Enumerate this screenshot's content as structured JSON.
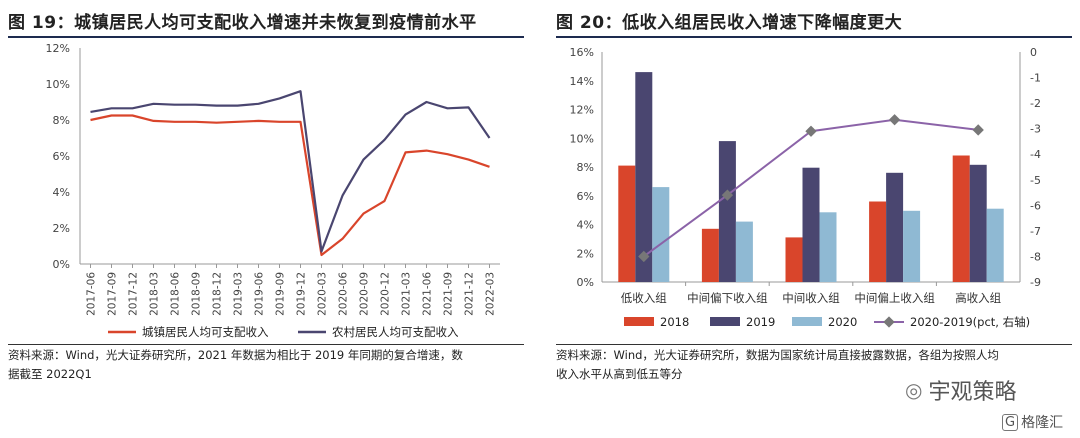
{
  "left": {
    "title": "图 19：城镇居民人均可支配收入增速并未恢复到疫情前水平",
    "note_line1": "资料来源：Wind，光大证券研究所，2021 年数据为相比于 2019 年同期的复合增速，数",
    "note_line2": "据截至 2022Q1"
  },
  "right": {
    "title": "图 20：低收入组居民收入增速下降幅度更大",
    "note_line1": "资料来源：Wind，光大证券研究所，数据为国家统计局直接披露数据，各组为按照人均",
    "note_line2": "收入水平从高到低五等分"
  },
  "watermark": {
    "brand": "宇观策略",
    "corner": "格隆汇"
  },
  "chart_data": [
    {
      "type": "line",
      "x": [
        "2017-06",
        "2017-09",
        "2017-12",
        "2018-03",
        "2018-06",
        "2018-09",
        "2018-12",
        "2019-03",
        "2019-06",
        "2019-09",
        "2019-12",
        "2020-03",
        "2020-06",
        "2020-09",
        "2020-12",
        "2021-03",
        "2021-06",
        "2021-09",
        "2021-12",
        "2022-03"
      ],
      "series": [
        {
          "name": "城镇居民人均可支配收入",
          "color": "#d9452b",
          "values": [
            8.0,
            8.25,
            8.25,
            7.95,
            7.9,
            7.9,
            7.85,
            7.9,
            7.95,
            7.9,
            7.9,
            0.5,
            1.4,
            2.8,
            3.5,
            6.2,
            6.3,
            6.1,
            5.8,
            5.4
          ]
        },
        {
          "name": "农村居民人均可支配收入",
          "color": "#4a4670",
          "values": [
            8.45,
            8.65,
            8.65,
            8.9,
            8.85,
            8.85,
            8.8,
            8.8,
            8.9,
            9.2,
            9.6,
            0.7,
            3.8,
            5.8,
            6.9,
            8.3,
            9.0,
            8.65,
            8.7,
            7.0
          ]
        }
      ],
      "yticks": [
        "0%",
        "2%",
        "4%",
        "6%",
        "8%",
        "10%",
        "12%"
      ],
      "ylim": [
        0,
        12
      ],
      "legend": "bottom",
      "grid": false
    },
    {
      "type": "bar",
      "categories": [
        "低收入组",
        "中间偏下收入组",
        "中间收入组",
        "中间偏上收入组",
        "高收入组"
      ],
      "series": [
        {
          "name": "2018",
          "color": "#d9452b",
          "values": [
            8.1,
            3.7,
            3.1,
            5.6,
            8.8
          ]
        },
        {
          "name": "2019",
          "color": "#4a4670",
          "values": [
            14.6,
            9.8,
            7.95,
            7.6,
            8.15
          ]
        },
        {
          "name": "2020",
          "color": "#8fb9d3",
          "values": [
            6.6,
            4.2,
            4.85,
            4.95,
            5.1
          ]
        }
      ],
      "line_series": {
        "name": "2020-2019(pct, 右轴)",
        "color": "#8b63a8",
        "axis": "right",
        "values": [
          -8.0,
          -5.6,
          -3.1,
          -2.65,
          -3.05
        ]
      },
      "yticks": [
        "0%",
        "2%",
        "4%",
        "6%",
        "8%",
        "10%",
        "12%",
        "14%",
        "16%"
      ],
      "ylim": [
        0,
        16
      ],
      "y2ticks": [
        "0",
        "-1",
        "-2",
        "-3",
        "-4",
        "-5",
        "-6",
        "-7",
        "-8",
        "-9"
      ],
      "y2lim": [
        -9,
        0
      ],
      "legend": "bottom",
      "grid": false
    }
  ]
}
